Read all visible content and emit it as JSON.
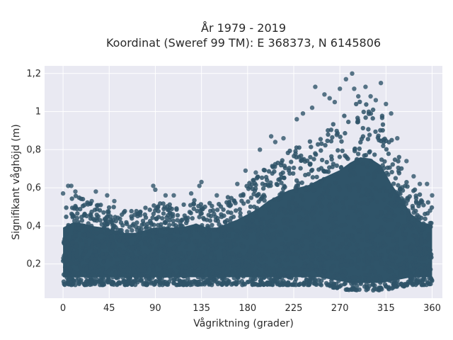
{
  "chart_data": {
    "type": "scatter",
    "title_line1": "År 1979 - 2019",
    "title_line2": "Koordinat (Sweref 99 TM): E 368373, N 6145806",
    "xlabel": "Vågriktning (grader)",
    "ylabel": "Signifikant våghöjd (m)",
    "xlim": [
      -18,
      370
    ],
    "ylim": [
      0.02,
      1.24
    ],
    "x_ticks": [
      0,
      45,
      90,
      135,
      180,
      225,
      270,
      315,
      360
    ],
    "y_ticks": [
      0.2,
      0.4,
      0.6,
      0.8,
      1.0,
      1.2
    ],
    "y_tick_labels": [
      "0,2",
      "0,4",
      "0,6",
      "0,8",
      "1",
      "1,2"
    ],
    "grid": true,
    "marker_color": "#2f5469",
    "plot_bg": "#e9e9f2",
    "envelope": {
      "x": [
        0,
        10,
        20,
        30,
        40,
        50,
        60,
        70,
        80,
        90,
        100,
        110,
        120,
        130,
        140,
        150,
        160,
        170,
        180,
        190,
        200,
        210,
        220,
        230,
        240,
        250,
        260,
        270,
        280,
        290,
        300,
        310,
        320,
        330,
        340,
        350,
        360
      ],
      "y_min": [
        0.09,
        0.09,
        0.09,
        0.09,
        0.09,
        0.09,
        0.09,
        0.09,
        0.09,
        0.09,
        0.09,
        0.09,
        0.09,
        0.09,
        0.09,
        0.09,
        0.09,
        0.09,
        0.09,
        0.09,
        0.09,
        0.09,
        0.09,
        0.09,
        0.09,
        0.09,
        0.08,
        0.07,
        0.06,
        0.06,
        0.06,
        0.06,
        0.07,
        0.08,
        0.09,
        0.09,
        0.09
      ],
      "y_max": [
        0.52,
        0.56,
        0.55,
        0.53,
        0.52,
        0.5,
        0.48,
        0.48,
        0.5,
        0.52,
        0.52,
        0.52,
        0.53,
        0.55,
        0.52,
        0.52,
        0.55,
        0.58,
        0.62,
        0.66,
        0.72,
        0.76,
        0.8,
        0.82,
        0.84,
        0.88,
        0.92,
        0.96,
        1.02,
        1.06,
        1.05,
        1.0,
        0.86,
        0.74,
        0.62,
        0.56,
        0.54
      ]
    },
    "outliers": [
      {
        "x": 0,
        "y": 0.57
      },
      {
        "x": 5,
        "y": 0.61
      },
      {
        "x": 8,
        "y": 0.61
      },
      {
        "x": 12,
        "y": 0.58
      },
      {
        "x": 28,
        "y": 0.53
      },
      {
        "x": 32,
        "y": 0.58
      },
      {
        "x": 43,
        "y": 0.56
      },
      {
        "x": 50,
        "y": 0.53
      },
      {
        "x": 88,
        "y": 0.61
      },
      {
        "x": 90,
        "y": 0.59
      },
      {
        "x": 100,
        "y": 0.56
      },
      {
        "x": 108,
        "y": 0.56
      },
      {
        "x": 125,
        "y": 0.57
      },
      {
        "x": 133,
        "y": 0.61
      },
      {
        "x": 135,
        "y": 0.63
      },
      {
        "x": 150,
        "y": 0.56
      },
      {
        "x": 170,
        "y": 0.62
      },
      {
        "x": 178,
        "y": 0.69
      },
      {
        "x": 188,
        "y": 0.68
      },
      {
        "x": 192,
        "y": 0.8
      },
      {
        "x": 203,
        "y": 0.87
      },
      {
        "x": 207,
        "y": 0.84
      },
      {
        "x": 215,
        "y": 0.86
      },
      {
        "x": 228,
        "y": 0.96
      },
      {
        "x": 234,
        "y": 0.99
      },
      {
        "x": 243,
        "y": 1.02
      },
      {
        "x": 246,
        "y": 1.13
      },
      {
        "x": 255,
        "y": 1.09
      },
      {
        "x": 260,
        "y": 1.07
      },
      {
        "x": 265,
        "y": 1.05
      },
      {
        "x": 270,
        "y": 1.12
      },
      {
        "x": 276,
        "y": 1.17
      },
      {
        "x": 282,
        "y": 1.2
      },
      {
        "x": 284,
        "y": 1.12
      },
      {
        "x": 288,
        "y": 1.08
      },
      {
        "x": 295,
        "y": 1.13
      },
      {
        "x": 300,
        "y": 1.08
      },
      {
        "x": 305,
        "y": 1.06
      },
      {
        "x": 310,
        "y": 1.15
      },
      {
        "x": 315,
        "y": 1.04
      },
      {
        "x": 320,
        "y": 0.99
      },
      {
        "x": 326,
        "y": 0.86
      },
      {
        "x": 335,
        "y": 0.74
      },
      {
        "x": 342,
        "y": 0.66
      },
      {
        "x": 348,
        "y": 0.62
      },
      {
        "x": 355,
        "y": 0.62
      },
      {
        "x": 360,
        "y": 0.56
      },
      {
        "x": 358,
        "y": 0.48
      }
    ]
  }
}
